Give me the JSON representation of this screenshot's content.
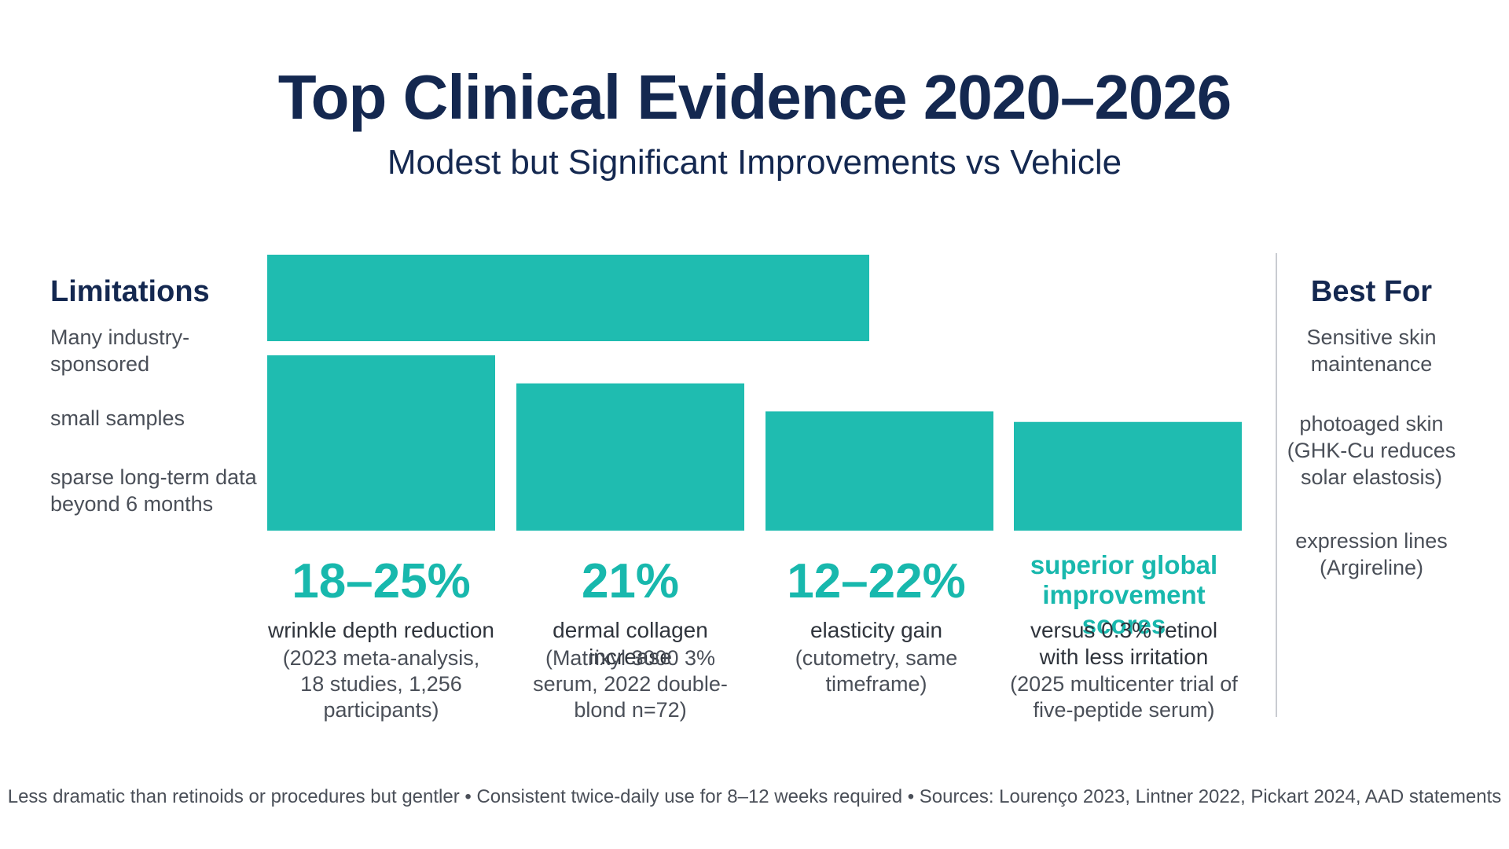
{
  "title": "Top Clinical Evidence 2020–2026",
  "subtitle": "Modest but Significant Improvements vs Vehicle",
  "limitations": {
    "heading": "Limitations",
    "items": [
      "Many industry-sponsored",
      "small samples",
      "sparse long-term data beyond 6 months"
    ]
  },
  "best_for": {
    "heading": "Best For",
    "items": [
      "Sensitive skin maintenance",
      "photoaged skin (GHK-Cu reduces solar elastosis)",
      "expression lines (Argireline)"
    ]
  },
  "stats": [
    {
      "value": "18–25%",
      "label": "wrinkle depth reduction",
      "detail": "(2023 meta-analysis, 18 studies, 1,256 participants)"
    },
    {
      "value": "21%",
      "label": "dermal collagen increase",
      "detail": "(Matrixyl 3000 3% serum, 2022 double-blond n=72)"
    },
    {
      "value": "12–22%",
      "label": "elasticity gain",
      "detail": "(cutometry, same timeframe)"
    },
    {
      "value": "superior global improvement scores",
      "label": "versus 0.3% retinol with less irritation",
      "detail": "(2025 multicenter trial of five-peptide serum)"
    }
  ],
  "footer": "Less dramatic than retinoids or procedures but gentler • Consistent twice-daily use for 8–12 weeks required • Sources: Lourenço 2023, Lintner 2022, Pickart 2024, AAD statements",
  "colors": {
    "bar": "#1fbcb0",
    "accent": "#18b8ad",
    "heading": "#142850"
  },
  "chart_data": {
    "type": "bar",
    "categories": [
      "wrinkle depth reduction",
      "dermal collagen increase",
      "elasticity gain",
      "superior global improvement scores"
    ],
    "values": [
      25,
      21,
      17,
      15.5
    ],
    "top_band": true,
    "ylim": [
      0,
      25
    ],
    "grid": false,
    "legend": "none"
  }
}
